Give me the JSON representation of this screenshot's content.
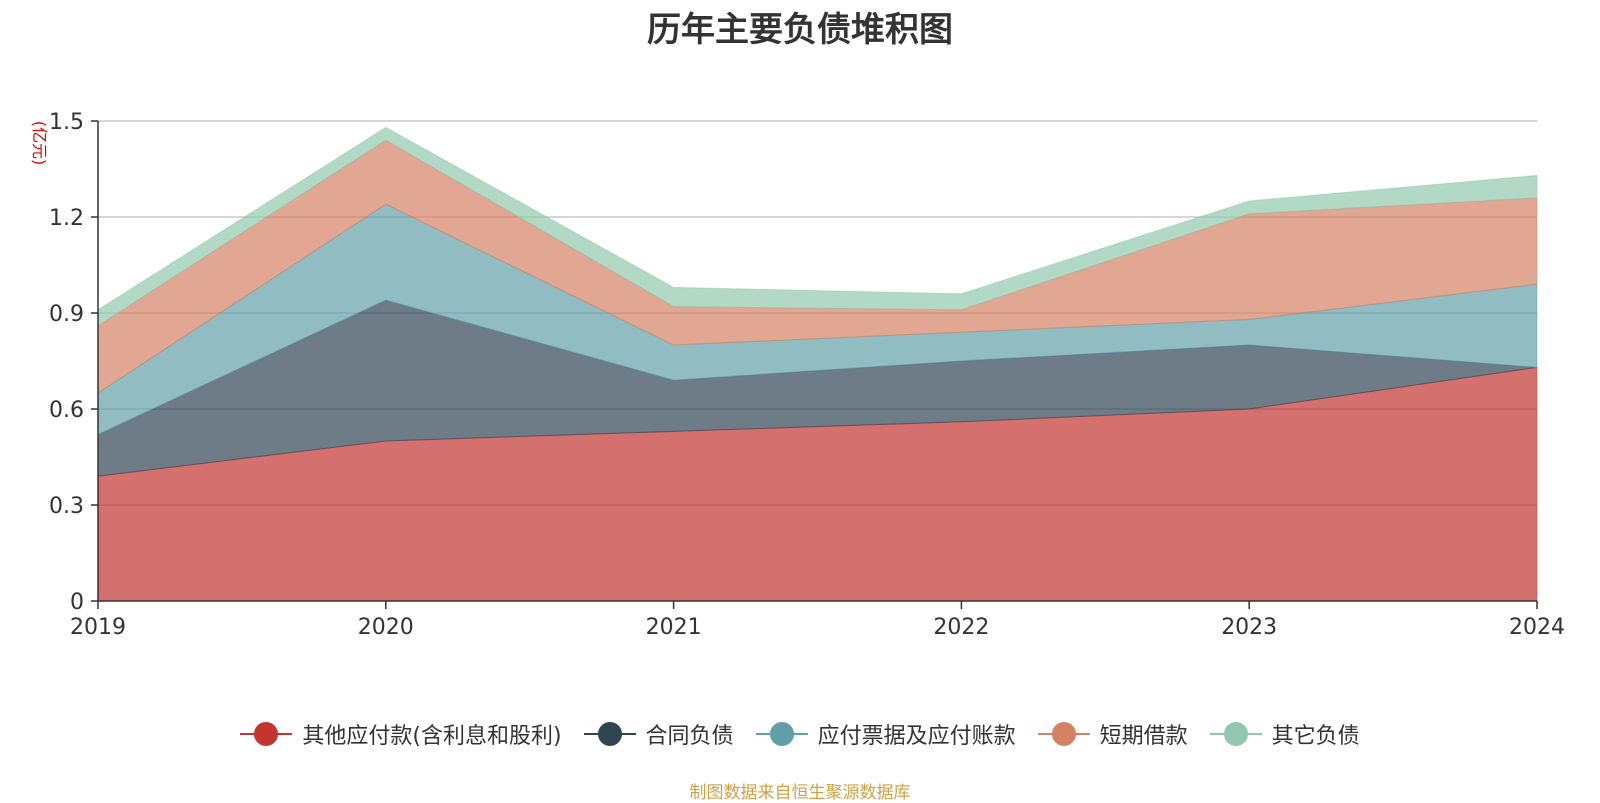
{
  "chart_data": {
    "type": "area",
    "stacked": true,
    "title": "历年主要负债堆积图",
    "ylabel": "(亿元)",
    "x": [
      "2019",
      "2020",
      "2021",
      "2022",
      "2023",
      "2024"
    ],
    "ylim": [
      0,
      1.5
    ],
    "yticks": [
      "0",
      "0.3",
      "0.6",
      "0.9",
      "1.2",
      "1.5"
    ],
    "grid": true,
    "legend_position": "bottom",
    "series": [
      {
        "name": "其他应付款(含利息和股利)",
        "color": "#c23531",
        "values": [
          0.39,
          0.5,
          0.53,
          0.56,
          0.6,
          0.73
        ]
      },
      {
        "name": "合同负债",
        "color": "#2f4554",
        "values": [
          0.13,
          0.44,
          0.16,
          0.19,
          0.2,
          0.0
        ]
      },
      {
        "name": "应付票据及应付账款",
        "color": "#61a0a8",
        "values": [
          0.13,
          0.3,
          0.11,
          0.09,
          0.08,
          0.26
        ]
      },
      {
        "name": "短期借款",
        "color": "#d48265",
        "values": [
          0.21,
          0.2,
          0.12,
          0.07,
          0.33,
          0.27
        ]
      },
      {
        "name": "其它负债",
        "color": "#91c7ae",
        "values": [
          0.05,
          0.04,
          0.06,
          0.05,
          0.04,
          0.07
        ]
      }
    ]
  },
  "source_note": "制图数据来自恒生聚源数据库"
}
